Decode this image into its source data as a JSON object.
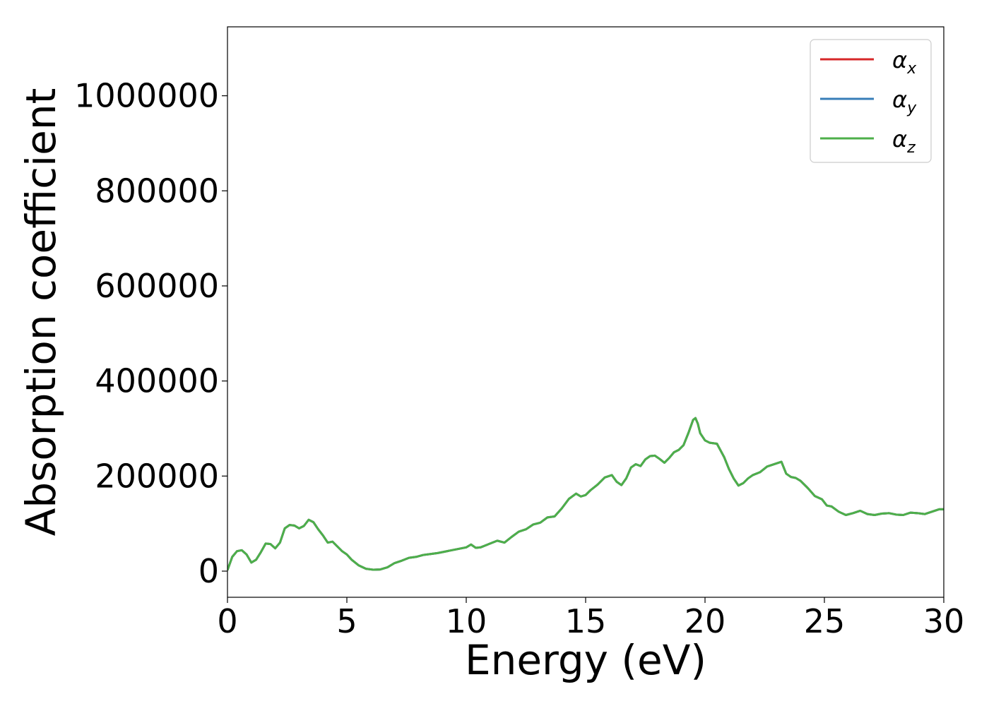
{
  "chart_data": {
    "type": "line",
    "xlabel": "Energy (eV)",
    "ylabel": "Absorption coefficient",
    "xlim": [
      0,
      30
    ],
    "ylim": [
      -55000,
      1145000
    ],
    "xticks": [
      0,
      5,
      10,
      15,
      20,
      25,
      30
    ],
    "xtick_labels": [
      "0",
      "5",
      "10",
      "15",
      "20",
      "25",
      "30"
    ],
    "yticks": [
      0,
      200000,
      400000,
      600000,
      800000,
      1000000
    ],
    "ytick_labels": [
      "0",
      "200000",
      "400000",
      "600000",
      "800000",
      "1000000"
    ],
    "grid": false,
    "legend_position": "upper right",
    "x": [
      0,
      0.2,
      0.4,
      0.6,
      0.8,
      1.0,
      1.2,
      1.4,
      1.6,
      1.8,
      2.0,
      2.2,
      2.4,
      2.6,
      2.8,
      3.0,
      3.2,
      3.4,
      3.6,
      3.8,
      4.0,
      4.2,
      4.4,
      4.6,
      4.8,
      5.0,
      5.2,
      5.5,
      5.8,
      6.1,
      6.4,
      6.7,
      7.0,
      7.3,
      7.6,
      7.9,
      8.2,
      8.5,
      8.8,
      9.1,
      9.4,
      9.7,
      10.0,
      10.2,
      10.4,
      10.6,
      10.8,
      11.0,
      11.3,
      11.6,
      11.9,
      12.2,
      12.5,
      12.8,
      13.1,
      13.4,
      13.7,
      14.0,
      14.3,
      14.6,
      14.8,
      15.0,
      15.2,
      15.5,
      15.8,
      16.1,
      16.3,
      16.5,
      16.7,
      16.9,
      17.1,
      17.3,
      17.5,
      17.7,
      17.9,
      18.1,
      18.3,
      18.5,
      18.7,
      18.9,
      19.1,
      19.3,
      19.5,
      19.6,
      19.7,
      19.8,
      20.0,
      20.2,
      20.5,
      20.8,
      21.0,
      21.2,
      21.4,
      21.6,
      21.8,
      22.0,
      22.3,
      22.6,
      22.9,
      23.2,
      23.4,
      23.6,
      23.8,
      24.0,
      24.3,
      24.6,
      24.9,
      25.1,
      25.3,
      25.6,
      25.9,
      26.2,
      26.5,
      26.8,
      27.1,
      27.4,
      27.7,
      28.0,
      28.3,
      28.6,
      28.9,
      29.2,
      29.5,
      29.8,
      30.0
    ],
    "series": [
      {
        "name": "α_x",
        "color": "#d62728",
        "values": [
          2000,
          30000,
          42000,
          44000,
          35000,
          18000,
          24000,
          40000,
          58000,
          57000,
          48000,
          60000,
          90000,
          97000,
          96000,
          90000,
          95000,
          108000,
          103000,
          88000,
          75000,
          60000,
          62000,
          52000,
          42000,
          35000,
          24000,
          12000,
          5000,
          3000,
          3500,
          8000,
          17000,
          22000,
          28000,
          30000,
          34000,
          36000,
          38000,
          41000,
          44000,
          47000,
          50000,
          56000,
          49000,
          50000,
          54000,
          58000,
          64000,
          60000,
          72000,
          83000,
          88000,
          98000,
          102000,
          113000,
          115000,
          132000,
          152000,
          163000,
          157000,
          160000,
          170000,
          182000,
          197000,
          202000,
          188000,
          181000,
          195000,
          218000,
          225000,
          221000,
          235000,
          242000,
          243000,
          236000,
          228000,
          238000,
          250000,
          255000,
          265000,
          290000,
          318000,
          322000,
          310000,
          290000,
          275000,
          270000,
          268000,
          240000,
          215000,
          195000,
          180000,
          185000,
          195000,
          202000,
          208000,
          220000,
          225000,
          230000,
          205000,
          198000,
          196000,
          190000,
          175000,
          158000,
          151000,
          138000,
          136000,
          125000,
          118000,
          122000,
          127000,
          120000,
          118000,
          121000,
          122000,
          119000,
          118000,
          123000,
          122000,
          120000,
          125000,
          130000,
          130000
        ]
      },
      {
        "name": "α_y",
        "color": "#377eb8",
        "values": [
          2000,
          30000,
          42000,
          44000,
          35000,
          18000,
          24000,
          40000,
          58000,
          57000,
          48000,
          60000,
          90000,
          97000,
          96000,
          90000,
          95000,
          108000,
          103000,
          88000,
          75000,
          60000,
          62000,
          52000,
          42000,
          35000,
          24000,
          12000,
          5000,
          3000,
          3500,
          8000,
          17000,
          22000,
          28000,
          30000,
          34000,
          36000,
          38000,
          41000,
          44000,
          47000,
          50000,
          56000,
          49000,
          50000,
          54000,
          58000,
          64000,
          60000,
          72000,
          83000,
          88000,
          98000,
          102000,
          113000,
          115000,
          132000,
          152000,
          163000,
          157000,
          160000,
          170000,
          182000,
          197000,
          202000,
          188000,
          181000,
          195000,
          218000,
          225000,
          221000,
          235000,
          242000,
          243000,
          236000,
          228000,
          238000,
          250000,
          255000,
          265000,
          290000,
          318000,
          322000,
          310000,
          290000,
          275000,
          270000,
          268000,
          240000,
          215000,
          195000,
          180000,
          185000,
          195000,
          202000,
          208000,
          220000,
          225000,
          230000,
          205000,
          198000,
          196000,
          190000,
          175000,
          158000,
          151000,
          138000,
          136000,
          125000,
          118000,
          122000,
          127000,
          120000,
          118000,
          121000,
          122000,
          119000,
          118000,
          123000,
          122000,
          120000,
          125000,
          130000,
          130000
        ]
      },
      {
        "name": "α_z",
        "color": "#4daf4a",
        "values": [
          2000,
          30000,
          42000,
          44000,
          35000,
          18000,
          24000,
          40000,
          58000,
          57000,
          48000,
          60000,
          90000,
          97000,
          96000,
          90000,
          95000,
          108000,
          103000,
          88000,
          75000,
          60000,
          62000,
          52000,
          42000,
          35000,
          24000,
          12000,
          5000,
          3000,
          3500,
          8000,
          17000,
          22000,
          28000,
          30000,
          34000,
          36000,
          38000,
          41000,
          44000,
          47000,
          50000,
          56000,
          49000,
          50000,
          54000,
          58000,
          64000,
          60000,
          72000,
          83000,
          88000,
          98000,
          102000,
          113000,
          115000,
          132000,
          152000,
          163000,
          157000,
          160000,
          170000,
          182000,
          197000,
          202000,
          188000,
          181000,
          195000,
          218000,
          225000,
          221000,
          235000,
          242000,
          243000,
          236000,
          228000,
          238000,
          250000,
          255000,
          265000,
          290000,
          318000,
          322000,
          310000,
          290000,
          275000,
          270000,
          268000,
          240000,
          215000,
          195000,
          180000,
          185000,
          195000,
          202000,
          208000,
          220000,
          225000,
          230000,
          205000,
          198000,
          196000,
          190000,
          175000,
          158000,
          151000,
          138000,
          136000,
          125000,
          118000,
          122000,
          127000,
          120000,
          118000,
          121000,
          122000,
          119000,
          118000,
          123000,
          122000,
          120000,
          125000,
          130000,
          130000
        ]
      }
    ],
    "legend": [
      {
        "symbol": "α",
        "subscript": "x"
      },
      {
        "symbol": "α",
        "subscript": "y"
      },
      {
        "symbol": "α",
        "subscript": "z"
      }
    ]
  }
}
